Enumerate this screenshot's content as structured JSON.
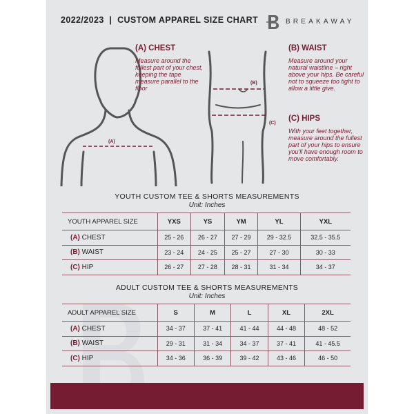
{
  "header": {
    "title": "2022/2023  |  CUSTOM APPAREL SIZE CHART",
    "brand": "BREAKAWAY",
    "logo_letter": "B"
  },
  "measures": {
    "chest": {
      "title": "(A) CHEST",
      "text": "Measure around the fullest part of your chest, keeping the tape measure parallel to the floor",
      "marker": "(A)"
    },
    "waist": {
      "title": "(B) WAIST",
      "text": "Measure around your natural waistline – right above your hips. Be careful not to squeeze too tight to allow a little give.",
      "marker": "(B)"
    },
    "hips": {
      "title": "(C) HIPS",
      "text": "With your feet together, measure around the fullest part of your hips to ensure you'll have enough room to move comfortably.",
      "marker": "(C)"
    }
  },
  "youth": {
    "title": "YOUTH CUSTOM TEE & SHORTS MEASUREMENTS",
    "unit": "Unit: Inches",
    "header": "YOUTH APPAREL SIZE",
    "sizes": [
      "YXS",
      "YS",
      "YM",
      "YL",
      "YXL"
    ],
    "rows": [
      {
        "code": "(A)",
        "name": "CHEST",
        "values": [
          "25 - 26",
          "26 - 27",
          "27 - 29",
          "29 - 32.5",
          "32.5 - 35.5"
        ]
      },
      {
        "code": "(B)",
        "name": "WAIST",
        "values": [
          "23 - 24",
          "24 - 25",
          "25 - 27",
          "27 - 30",
          "30 - 33"
        ]
      },
      {
        "code": "(C)",
        "name": "HIP",
        "values": [
          "26 - 27",
          "27 - 28",
          "28 - 31",
          "31 - 34",
          "34 - 37"
        ]
      }
    ]
  },
  "adult": {
    "title": "ADULT CUSTOM TEE & SHORTS MEASUREMENTS",
    "unit": "Unit: Inches",
    "header": "ADULT APPAREL SIZE",
    "sizes": [
      "S",
      "M",
      "L",
      "XL",
      "2XL"
    ],
    "rows": [
      {
        "code": "(A)",
        "name": "CHEST",
        "values": [
          "34 - 37",
          "37 - 41",
          "41 - 44",
          "44 - 48",
          "48 - 52"
        ]
      },
      {
        "code": "(B)",
        "name": "WAIST",
        "values": [
          "29 - 31",
          "31 - 34",
          "34 - 37",
          "37 - 41",
          "41 - 45.5"
        ]
      },
      {
        "code": "(C)",
        "name": "HIP",
        "values": [
          "34 - 36",
          "36 - 39",
          "39 - 42",
          "43 - 46",
          "46 - 50"
        ]
      }
    ]
  },
  "colors": {
    "accent": "#751c33",
    "background": "#e5e6e8"
  }
}
